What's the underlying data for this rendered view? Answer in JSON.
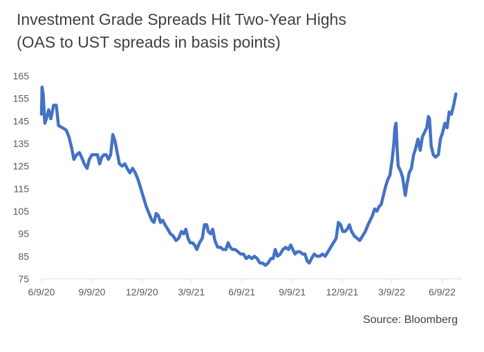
{
  "title": "Investment Grade Spreads Hit Two-Year Highs",
  "subtitle": "(OAS to UST spreads in basis points)",
  "source": "Source: Bloomberg",
  "chart_data": {
    "type": "line",
    "title": "Investment Grade Spreads Hit Two-Year Highs",
    "subtitle": "(OAS to UST spreads in basis points)",
    "xlabel": "",
    "ylabel": "",
    "ylim": [
      75,
      165
    ],
    "y_ticks": [
      75,
      85,
      95,
      105,
      115,
      125,
      135,
      145,
      155,
      165
    ],
    "x_tick_labels": [
      "6/9/20",
      "9/9/20",
      "12/9/20",
      "3/9/21",
      "6/9/21",
      "9/9/21",
      "12/9/21",
      "3/9/22",
      "6/9/22"
    ],
    "xlim": [
      "2020-06-09",
      "2022-07-15"
    ],
    "grid": false,
    "line_color": "#4472C4",
    "series": [
      {
        "points": [
          [
            "2020-06-09",
            148
          ],
          [
            "2020-06-10",
            160
          ],
          [
            "2020-06-12",
            157
          ],
          [
            "2020-06-15",
            144
          ],
          [
            "2020-06-18",
            146
          ],
          [
            "2020-06-22",
            150
          ],
          [
            "2020-06-26",
            146
          ],
          [
            "2020-07-01",
            152
          ],
          [
            "2020-07-06",
            152
          ],
          [
            "2020-07-10",
            143
          ],
          [
            "2020-07-17",
            142
          ],
          [
            "2020-07-24",
            141
          ],
          [
            "2020-07-29",
            138
          ],
          [
            "2020-08-03",
            133
          ],
          [
            "2020-08-07",
            128
          ],
          [
            "2020-08-12",
            130
          ],
          [
            "2020-08-17",
            131
          ],
          [
            "2020-08-21",
            129
          ],
          [
            "2020-08-26",
            126
          ],
          [
            "2020-08-31",
            124
          ],
          [
            "2020-09-04",
            128
          ],
          [
            "2020-09-09",
            130
          ],
          [
            "2020-09-14",
            130
          ],
          [
            "2020-09-19",
            130
          ],
          [
            "2020-09-23",
            126
          ],
          [
            "2020-09-27",
            129
          ],
          [
            "2020-10-01",
            130
          ],
          [
            "2020-10-05",
            130
          ],
          [
            "2020-10-09",
            128
          ],
          [
            "2020-10-13",
            130
          ],
          [
            "2020-10-17",
            139
          ],
          [
            "2020-10-21",
            136
          ],
          [
            "2020-10-25",
            131
          ],
          [
            "2020-10-29",
            126
          ],
          [
            "2020-11-03",
            125
          ],
          [
            "2020-11-08",
            126
          ],
          [
            "2020-11-12",
            124
          ],
          [
            "2020-11-17",
            122
          ],
          [
            "2020-11-22",
            124
          ],
          [
            "2020-11-27",
            122
          ],
          [
            "2020-12-02",
            119
          ],
          [
            "2020-12-07",
            115
          ],
          [
            "2020-12-12",
            111
          ],
          [
            "2020-12-17",
            107
          ],
          [
            "2020-12-22",
            104
          ],
          [
            "2020-12-27",
            101
          ],
          [
            "2020-12-31",
            100
          ],
          [
            "2021-01-04",
            104
          ],
          [
            "2021-01-08",
            103
          ],
          [
            "2021-01-12",
            100
          ],
          [
            "2021-01-16",
            101
          ],
          [
            "2021-01-20",
            99
          ],
          [
            "2021-01-25",
            97
          ],
          [
            "2021-01-30",
            95
          ],
          [
            "2021-02-04",
            94
          ],
          [
            "2021-02-09",
            92
          ],
          [
            "2021-02-14",
            93
          ],
          [
            "2021-02-19",
            96
          ],
          [
            "2021-02-23",
            95
          ],
          [
            "2021-02-27",
            97
          ],
          [
            "2021-03-03",
            93
          ],
          [
            "2021-03-07",
            91
          ],
          [
            "2021-03-11",
            91
          ],
          [
            "2021-03-15",
            90
          ],
          [
            "2021-03-19",
            88
          ],
          [
            "2021-03-24",
            91
          ],
          [
            "2021-03-29",
            93
          ],
          [
            "2021-04-02",
            99
          ],
          [
            "2021-04-06",
            99
          ],
          [
            "2021-04-09",
            96
          ],
          [
            "2021-04-13",
            95
          ],
          [
            "2021-04-17",
            97
          ],
          [
            "2021-04-21",
            92
          ],
          [
            "2021-04-26",
            89
          ],
          [
            "2021-05-01",
            89
          ],
          [
            "2021-05-06",
            88
          ],
          [
            "2021-05-11",
            88
          ],
          [
            "2021-05-15",
            91
          ],
          [
            "2021-05-19",
            89
          ],
          [
            "2021-05-23",
            88
          ],
          [
            "2021-05-28",
            88
          ],
          [
            "2021-06-02",
            87
          ],
          [
            "2021-06-07",
            86
          ],
          [
            "2021-06-12",
            86
          ],
          [
            "2021-06-17",
            84
          ],
          [
            "2021-06-22",
            85
          ],
          [
            "2021-06-27",
            84
          ],
          [
            "2021-07-02",
            85
          ],
          [
            "2021-07-07",
            84
          ],
          [
            "2021-07-12",
            82
          ],
          [
            "2021-07-17",
            82
          ],
          [
            "2021-07-22",
            81
          ],
          [
            "2021-07-27",
            82
          ],
          [
            "2021-08-01",
            84
          ],
          [
            "2021-08-05",
            84
          ],
          [
            "2021-08-09",
            88
          ],
          [
            "2021-08-13",
            85
          ],
          [
            "2021-08-18",
            86
          ],
          [
            "2021-08-23",
            88
          ],
          [
            "2021-08-28",
            89
          ],
          [
            "2021-09-02",
            88
          ],
          [
            "2021-09-06",
            90
          ],
          [
            "2021-09-10",
            88
          ],
          [
            "2021-09-14",
            86
          ],
          [
            "2021-09-18",
            87
          ],
          [
            "2021-09-23",
            87
          ],
          [
            "2021-09-28",
            86
          ],
          [
            "2021-10-02",
            86
          ],
          [
            "2021-10-06",
            83
          ],
          [
            "2021-10-10",
            82
          ],
          [
            "2021-10-14",
            84
          ],
          [
            "2021-10-19",
            86
          ],
          [
            "2021-10-24",
            85
          ],
          [
            "2021-10-29",
            85
          ],
          [
            "2021-11-03",
            86
          ],
          [
            "2021-11-08",
            85
          ],
          [
            "2021-11-13",
            87
          ],
          [
            "2021-11-18",
            89
          ],
          [
            "2021-11-23",
            91
          ],
          [
            "2021-11-28",
            93
          ],
          [
            "2021-12-02",
            100
          ],
          [
            "2021-12-06",
            99
          ],
          [
            "2021-12-10",
            96
          ],
          [
            "2021-12-14",
            96
          ],
          [
            "2021-12-18",
            97
          ],
          [
            "2021-12-22",
            99
          ],
          [
            "2021-12-26",
            96
          ],
          [
            "2021-12-31",
            94
          ],
          [
            "2022-01-05",
            93
          ],
          [
            "2022-01-10",
            92
          ],
          [
            "2022-01-15",
            94
          ],
          [
            "2022-01-20",
            96
          ],
          [
            "2022-01-25",
            99
          ],
          [
            "2022-01-29",
            101
          ],
          [
            "2022-02-02",
            103
          ],
          [
            "2022-02-06",
            106
          ],
          [
            "2022-02-10",
            105
          ],
          [
            "2022-02-14",
            107
          ],
          [
            "2022-02-18",
            108
          ],
          [
            "2022-02-22",
            112
          ],
          [
            "2022-02-26",
            116
          ],
          [
            "2022-03-02",
            119
          ],
          [
            "2022-03-06",
            121
          ],
          [
            "2022-03-10",
            128
          ],
          [
            "2022-03-13",
            135
          ],
          [
            "2022-03-15",
            142
          ],
          [
            "2022-03-17",
            144
          ],
          [
            "2022-03-19",
            133
          ],
          [
            "2022-03-21",
            125
          ],
          [
            "2022-03-25",
            123
          ],
          [
            "2022-03-29",
            120
          ],
          [
            "2022-04-01",
            115
          ],
          [
            "2022-04-03",
            112
          ],
          [
            "2022-04-06",
            117
          ],
          [
            "2022-04-10",
            122
          ],
          [
            "2022-04-14",
            124
          ],
          [
            "2022-04-18",
            130
          ],
          [
            "2022-04-22",
            133
          ],
          [
            "2022-04-26",
            137
          ],
          [
            "2022-04-30",
            132
          ],
          [
            "2022-05-04",
            138
          ],
          [
            "2022-05-08",
            140
          ],
          [
            "2022-05-12",
            142
          ],
          [
            "2022-05-15",
            147
          ],
          [
            "2022-05-17",
            146
          ],
          [
            "2022-05-20",
            134
          ],
          [
            "2022-05-24",
            130
          ],
          [
            "2022-05-28",
            129
          ],
          [
            "2022-06-02",
            130
          ],
          [
            "2022-06-06",
            137
          ],
          [
            "2022-06-10",
            140
          ],
          [
            "2022-06-14",
            144
          ],
          [
            "2022-06-18",
            142
          ],
          [
            "2022-06-22",
            149
          ],
          [
            "2022-06-26",
            148
          ],
          [
            "2022-06-30",
            152
          ],
          [
            "2022-07-04",
            157
          ]
        ]
      }
    ]
  }
}
